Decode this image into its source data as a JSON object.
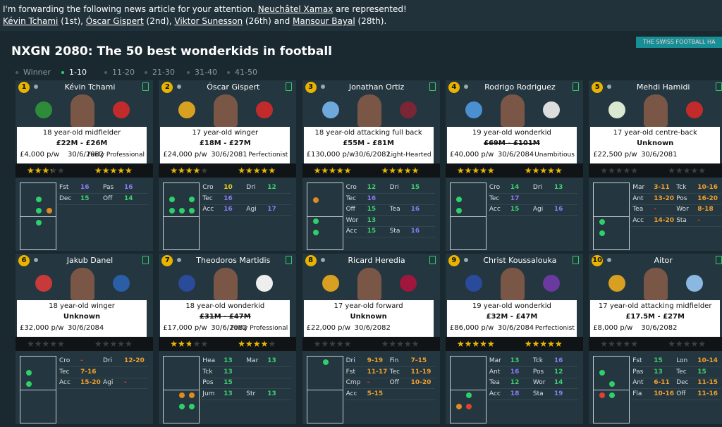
{
  "header": {
    "lines": [
      [
        {
          "text": "I'm forwarding the following news article for your attention. "
        },
        {
          "text": "Neuchâtel Xamax",
          "link": true
        },
        {
          "text": " are represented!"
        }
      ],
      [
        {
          "text": "Kévin Tchami",
          "link": true
        },
        {
          "text": " (1st), "
        },
        {
          "text": "Óscar Gispert",
          "link": true
        },
        {
          "text": " (2nd), "
        },
        {
          "text": "Viktor Sunesson",
          "link": true
        },
        {
          "text": " (26th) and "
        },
        {
          "text": "Mansour Bayal",
          "link": true
        },
        {
          "text": " (28th)."
        }
      ]
    ]
  },
  "article": {
    "title": "NXGN 2080: The 50 best wonderkids in football",
    "badge": "THE SWISS FOOTBALL HA",
    "tabs": [
      "Winner",
      "1-10",
      "11-20",
      "21-30",
      "31-40",
      "41-50"
    ],
    "active_tab": 1
  },
  "players": [
    {
      "rank": 1,
      "name": "Kévin Tchami",
      "description": "18 year-old midfielder",
      "value": "£22M - £26M",
      "wage": "£4,000 p/w",
      "contract": "30/6/2082",
      "personality": "Fairly Professional",
      "current_stars": 3,
      "potential_stars": 4.5,
      "attributes": [
        [
          [
            "Fst",
            "16"
          ],
          [
            "Pas",
            "16"
          ]
        ],
        [
          [
            "Dec",
            "15"
          ],
          [
            "Off",
            "14"
          ]
        ]
      ]
    },
    {
      "rank": 2,
      "name": "Óscar Gispert",
      "description": "17 year-old winger",
      "value": "£18M - £27M",
      "wage": "£24,000 p/w",
      "contract": "30/6/2081",
      "personality": "Perfectionist",
      "current_stars": 3.5,
      "potential_stars": 4.5,
      "attributes": [
        [
          [
            "Cro",
            "10"
          ],
          [
            "Dri",
            "12"
          ]
        ],
        [
          [
            "Tec",
            "16"
          ]
        ],
        [
          [
            "Acc",
            "16"
          ],
          [
            "Agi",
            "17"
          ]
        ]
      ]
    },
    {
      "rank": 3,
      "name": "Jonathan Ortiz",
      "description": "18 year-old attacking full back",
      "value": "£55M - £81M",
      "wage": "£130,000 p/w",
      "contract": "30/6/2082",
      "personality": "Light-Hearted",
      "current_stars": 4.5,
      "potential_stars": 4.5,
      "attributes": [
        [
          [
            "Cro",
            "12"
          ],
          [
            "Dri",
            "15"
          ]
        ],
        [
          [
            "Tec",
            "16"
          ]
        ],
        [
          [
            "Off",
            "15"
          ],
          [
            "Tea",
            "16"
          ]
        ],
        [
          [
            "Wor",
            "13"
          ]
        ],
        [
          [
            "Acc",
            "15"
          ],
          [
            "Sta",
            "16"
          ]
        ]
      ]
    },
    {
      "rank": 4,
      "name": "Rodrigo Rodriguez",
      "description": "19 year-old wonderkid",
      "value": "£69M - £101M",
      "value_struck": true,
      "wage": "£40,000 p/w",
      "contract": "30/6/2084",
      "personality": "Unambitious",
      "current_stars": 4.5,
      "potential_stars": 4.5,
      "attributes": [
        [
          [
            "Cro",
            "14"
          ],
          [
            "Dri",
            "13"
          ]
        ],
        [
          [
            "Tec",
            "17"
          ]
        ],
        [
          [
            "Acc",
            "15"
          ],
          [
            "Agi",
            "16"
          ]
        ]
      ]
    },
    {
      "rank": 5,
      "name": "Mehdi Hamidi",
      "description": "17 year-old centre-back",
      "value": "Unknown",
      "wage": "£22,500 p/w",
      "contract": "30/6/2081",
      "current_stars": 0,
      "potential_stars": 0,
      "attributes": [
        [
          [
            "Mar",
            "3-11"
          ],
          [
            "Tck",
            "10-16"
          ]
        ],
        [
          [
            "Ant",
            "13-20"
          ],
          [
            "Pos",
            "16-20"
          ]
        ],
        [
          [
            "Tea",
            "-"
          ],
          [
            "Wor",
            "8-18"
          ]
        ],
        [
          [
            "Acc",
            "14-20"
          ],
          [
            "Sta",
            "-"
          ]
        ]
      ]
    },
    {
      "rank": 6,
      "name": "Jakub Danel",
      "description": "18 year-old winger",
      "value": "Unknown",
      "wage": "£32,000 p/w",
      "contract": "30/6/2084",
      "current_stars": 0,
      "potential_stars": 0,
      "attributes": [
        [
          [
            "Cro",
            "-"
          ],
          [
            "Dri",
            "12-20"
          ]
        ],
        [
          [
            "Tec",
            "7-16"
          ]
        ],
        [
          [
            "Acc",
            "15-20"
          ],
          [
            "Agi",
            "-"
          ]
        ]
      ]
    },
    {
      "rank": 7,
      "name": "Theodoros Martidis",
      "description": "18 year-old wonderkid",
      "value": "£31M - £47M",
      "value_struck": true,
      "wage": "£17,000 p/w",
      "contract": "30/6/2082",
      "personality": "Fairly Professional",
      "current_stars": 2.5,
      "potential_stars": 3.5,
      "attributes": [
        [
          [
            "Hea",
            "13"
          ],
          [
            "Mar",
            "13"
          ]
        ],
        [
          [
            "Tck",
            "13"
          ]
        ],
        [
          [
            "Pos",
            "15"
          ]
        ],
        [
          [
            "Jum",
            "13"
          ],
          [
            "Str",
            "13"
          ]
        ]
      ]
    },
    {
      "rank": 8,
      "name": "Ricard Heredia",
      "description": "17 year-old forward",
      "value": "Unknown",
      "wage": "£22,000 p/w",
      "contract": "30/6/2082",
      "current_stars": 0,
      "potential_stars": 0,
      "attributes": [
        [
          [
            "Dri",
            "9-19"
          ],
          [
            "Fin",
            "7-15"
          ]
        ],
        [
          [
            "Fst",
            "11-17"
          ],
          [
            "Tec",
            "11-19"
          ]
        ],
        [
          [
            "Cmp",
            "-"
          ],
          [
            "Off",
            "10-20"
          ]
        ],
        [
          [
            "Acc",
            "5-15"
          ]
        ]
      ]
    },
    {
      "rank": 9,
      "name": "Christ Koussalouka",
      "description": "19 year-old wonderkid",
      "value": "£32M - £47M",
      "wage": "£86,000 p/w",
      "contract": "30/6/2084",
      "personality": "Perfectionist",
      "current_stars": 4.5,
      "potential_stars": 4.5,
      "attributes": [
        [
          [
            "Mar",
            "13"
          ],
          [
            "Tck",
            "16"
          ]
        ],
        [
          [
            "Ant",
            "16"
          ],
          [
            "Pos",
            "12"
          ]
        ],
        [
          [
            "Tea",
            "12"
          ],
          [
            "Wor",
            "14"
          ]
        ],
        [
          [
            "Acc",
            "18"
          ],
          [
            "Sta",
            "19"
          ]
        ]
      ]
    },
    {
      "rank": 10,
      "name": "Aitor",
      "description": "17 year-old attacking midfielder",
      "value": "£17.5M - £27M",
      "wage": "£8,000 p/w",
      "contract": "30/6/2082",
      "current_stars": 0,
      "potential_stars": 0,
      "attributes": [
        [
          [
            "Fst",
            "15"
          ],
          [
            "Lon",
            "10-14"
          ]
        ],
        [
          [
            "Pas",
            "13"
          ],
          [
            "Tec",
            "15"
          ]
        ],
        [
          [
            "Ant",
            "6-11"
          ],
          [
            "Dec",
            "11-15"
          ]
        ],
        [
          [
            "Fla",
            "10-16"
          ],
          [
            "Off",
            "11-16"
          ]
        ]
      ]
    }
  ]
}
